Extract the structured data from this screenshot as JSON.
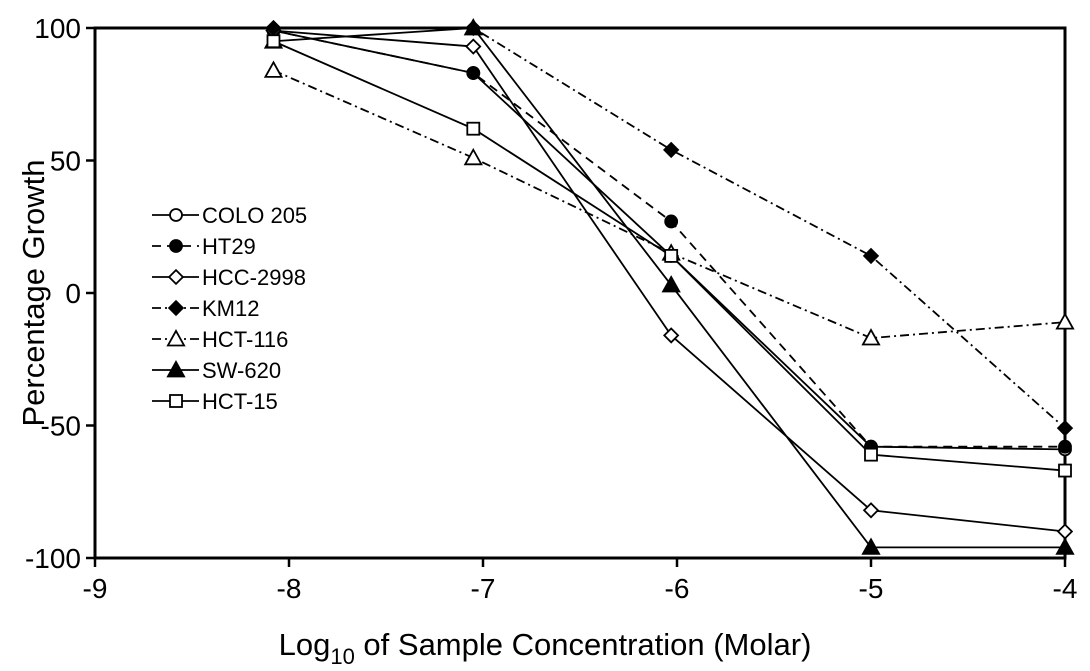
{
  "chart_data": {
    "type": "line",
    "xlabel": {
      "main": "Log",
      "sub": "10",
      "rest": " of Sample Concentration (Molar)"
    },
    "ylabel": "Percentage Growth",
    "xlim": [
      -9,
      -4
    ],
    "ylim": [
      -100,
      100
    ],
    "x_ticks": [
      -9,
      -8,
      -7,
      -6,
      -5,
      -4
    ],
    "y_ticks": [
      100,
      50,
      0,
      -50,
      -100
    ],
    "grid": false,
    "legend_position": "left",
    "series": [
      {
        "name": "COLO  205",
        "line": "solid",
        "marker": "circle-open",
        "x": [
          -8.08,
          -7.05,
          -6.03,
          -5.0,
          -4.0
        ],
        "y": [
          99,
          83,
          14,
          -58,
          -59
        ]
      },
      {
        "name": "HT29",
        "line": "dashed",
        "marker": "circle-filled",
        "x": [
          -8.08,
          -7.05,
          -6.03,
          -5.0,
          -4.0
        ],
        "y": [
          99,
          83,
          27,
          -58,
          -58
        ]
      },
      {
        "name": "HCC-2998",
        "line": "solid",
        "marker": "diamond-open",
        "x": [
          -8.08,
          -7.05,
          -6.03,
          -5.0,
          -4.0
        ],
        "y": [
          99,
          93,
          -16,
          -82,
          -90
        ]
      },
      {
        "name": "KM12",
        "line": "dashdot",
        "marker": "diamond-filled",
        "x": [
          -8.08,
          -7.05,
          -6.03,
          -5.0,
          -4.0
        ],
        "y": [
          100,
          100,
          54,
          14,
          -51
        ]
      },
      {
        "name": "HCT-116",
        "line": "dashdot",
        "marker": "triangle-open",
        "x": [
          -8.08,
          -7.05,
          -6.03,
          -5.0,
          -4.0
        ],
        "y": [
          84,
          51,
          15,
          -17,
          -11
        ]
      },
      {
        "name": "SW-620",
        "line": "solid",
        "marker": "triangle-filled",
        "x": [
          -8.08,
          -7.05,
          -6.03,
          -5.0,
          -4.0
        ],
        "y": [
          95,
          100,
          3,
          -96,
          -96
        ]
      },
      {
        "name": "HCT-15",
        "line": "solid",
        "marker": "square-open",
        "x": [
          -8.08,
          -7.05,
          -6.03,
          -5.0,
          -4.0
        ],
        "y": [
          95,
          62,
          14,
          -61,
          -67
        ]
      }
    ]
  }
}
